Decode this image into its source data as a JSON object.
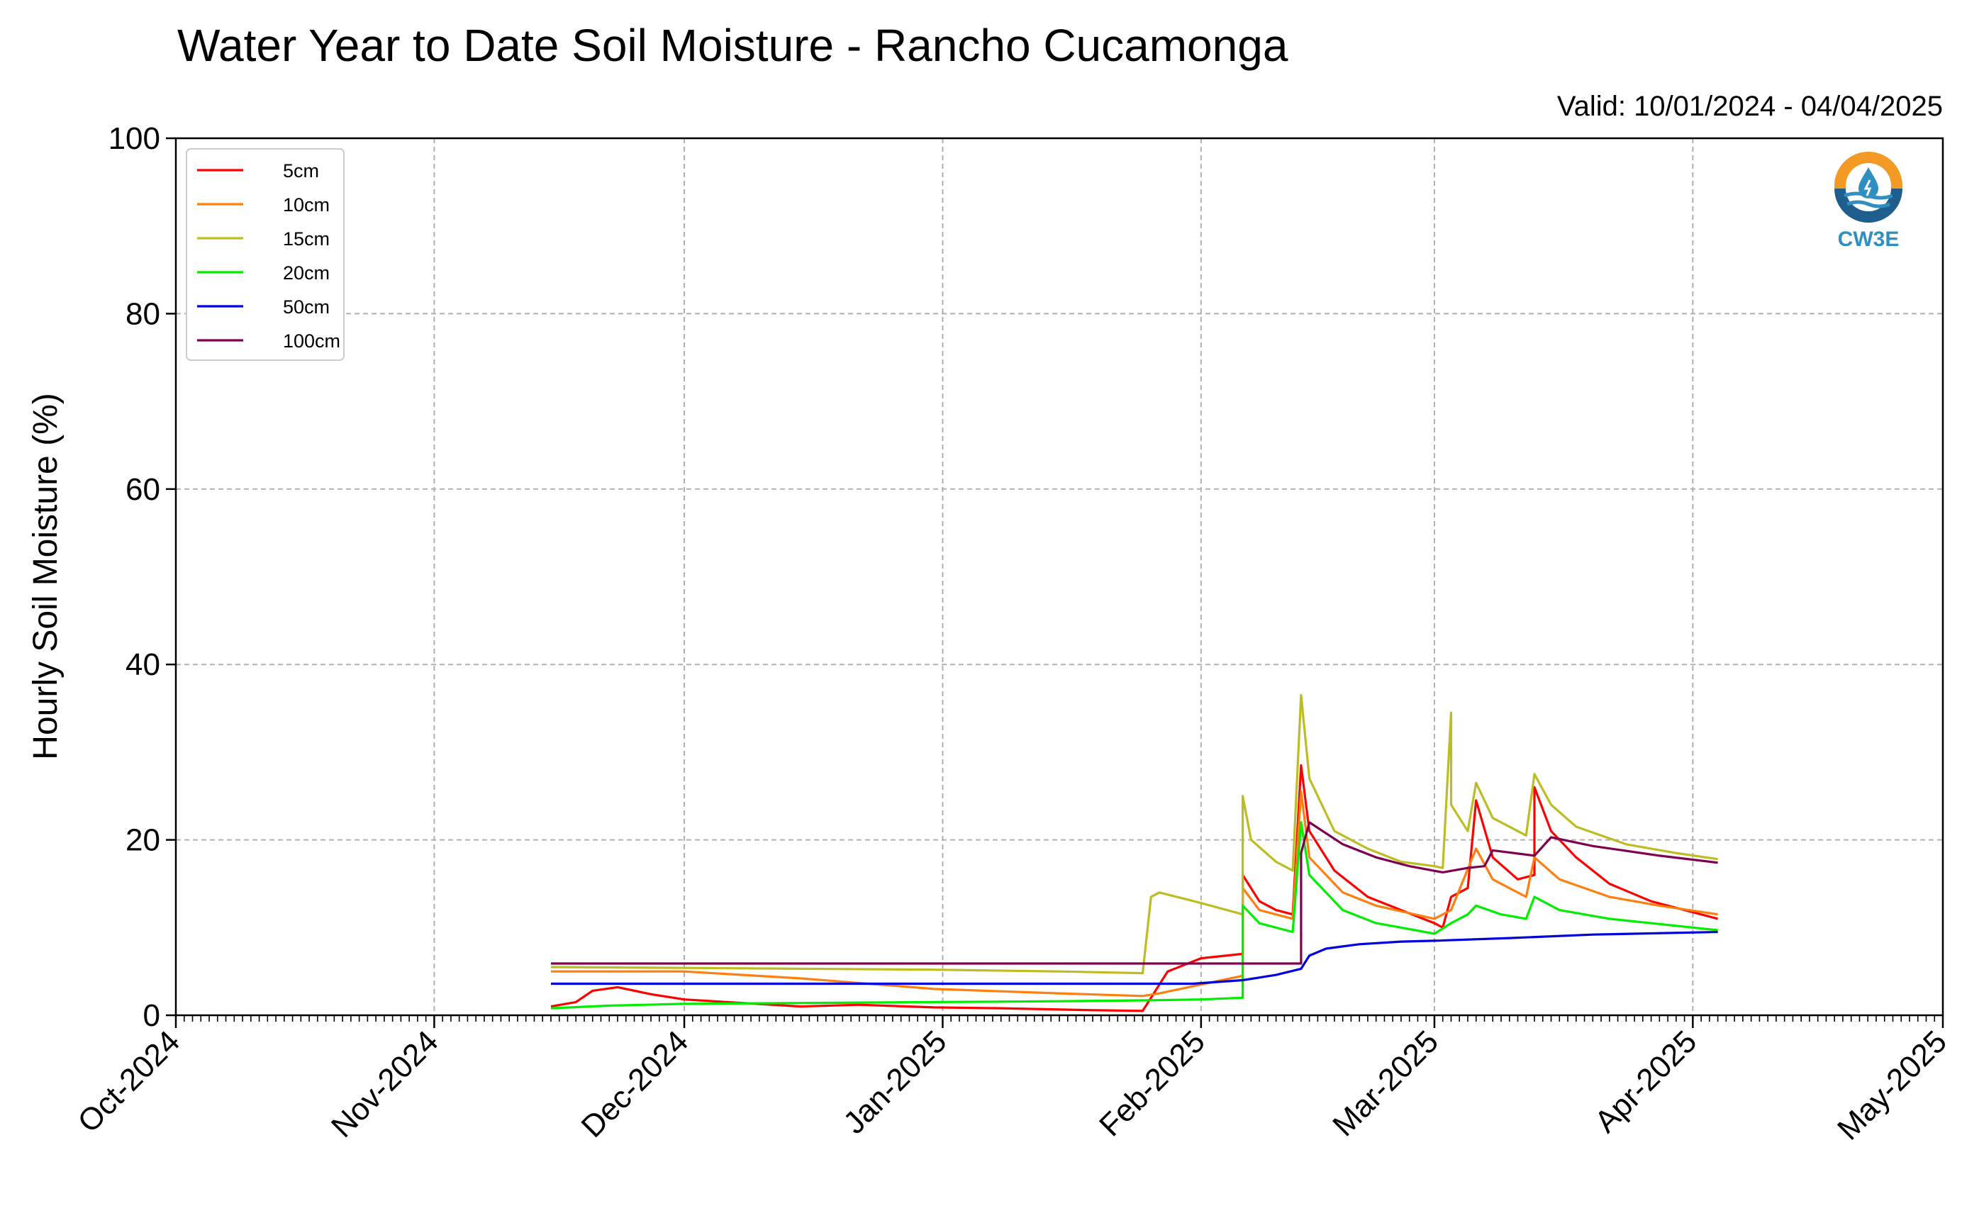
{
  "chart_data": {
    "type": "line",
    "title": "Water Year to Date Soil Moisture - Rancho Cucamonga",
    "subtitle": "Valid: 10/01/2024 - 04/04/2025",
    "ylabel": "Hourly Soil Moisture (%)",
    "xlabel": "",
    "ylim": [
      0,
      100
    ],
    "xlim": [
      "2024-10-01",
      "2025-05-01"
    ],
    "yticks": [
      0,
      20,
      40,
      60,
      80,
      100
    ],
    "xtick_labels": [
      "Oct-2024",
      "Nov-2024",
      "Dec-2024",
      "Jan-2025",
      "Feb-2025",
      "Mar-2025",
      "Apr-2025",
      "May-2025"
    ],
    "grid": true,
    "legend_position": "top-left",
    "logo_text": "CW3E",
    "series": [
      {
        "name": "5cm",
        "color": "#ff0000",
        "points": [
          [
            "2024-11-15",
            1.0
          ],
          [
            "2024-11-18",
            1.5
          ],
          [
            "2024-11-20",
            2.8
          ],
          [
            "2024-11-23",
            3.2
          ],
          [
            "2024-11-27",
            2.4
          ],
          [
            "2024-12-01",
            1.8
          ],
          [
            "2024-12-08",
            1.4
          ],
          [
            "2024-12-15",
            1.0
          ],
          [
            "2024-12-22",
            1.2
          ],
          [
            "2024-12-31",
            0.9
          ],
          [
            "2025-01-08",
            0.8
          ],
          [
            "2025-01-18",
            0.6
          ],
          [
            "2025-01-25",
            0.5
          ],
          [
            "2025-01-26",
            2.0
          ],
          [
            "2025-01-28",
            5.0
          ],
          [
            "2025-02-01",
            6.5
          ],
          [
            "2025-02-06",
            7.0
          ],
          [
            "2025-02-06",
            16.0
          ],
          [
            "2025-02-08",
            13.0
          ],
          [
            "2025-02-10",
            12.0
          ],
          [
            "2025-02-12",
            11.5
          ],
          [
            "2025-02-13",
            28.5
          ],
          [
            "2025-02-14",
            21.0
          ],
          [
            "2025-02-17",
            16.5
          ],
          [
            "2025-02-21",
            13.5
          ],
          [
            "2025-02-25",
            12.0
          ],
          [
            "2025-03-01",
            10.5
          ],
          [
            "2025-03-02",
            10.0
          ],
          [
            "2025-03-03",
            13.5
          ],
          [
            "2025-03-05",
            14.5
          ],
          [
            "2025-03-06",
            24.5
          ],
          [
            "2025-03-08",
            18.0
          ],
          [
            "2025-03-11",
            15.5
          ],
          [
            "2025-03-13",
            16.0
          ],
          [
            "2025-03-13",
            26.0
          ],
          [
            "2025-03-15",
            21.0
          ],
          [
            "2025-03-18",
            18.0
          ],
          [
            "2025-03-22",
            15.0
          ],
          [
            "2025-03-27",
            13.0
          ],
          [
            "2025-03-31",
            12.0
          ],
          [
            "2025-04-04",
            11.0
          ]
        ]
      },
      {
        "name": "10cm",
        "color": "#ff7f0e",
        "points": [
          [
            "2024-11-15",
            5.0
          ],
          [
            "2024-12-01",
            5.0
          ],
          [
            "2024-12-15",
            4.2
          ],
          [
            "2024-12-31",
            3.0
          ],
          [
            "2025-01-15",
            2.5
          ],
          [
            "2025-01-25",
            2.2
          ],
          [
            "2025-01-27",
            2.5
          ],
          [
            "2025-02-01",
            3.5
          ],
          [
            "2025-02-06",
            4.5
          ],
          [
            "2025-02-06",
            14.5
          ],
          [
            "2025-02-08",
            12.0
          ],
          [
            "2025-02-12",
            11.0
          ],
          [
            "2025-02-13",
            25.5
          ],
          [
            "2025-02-14",
            18.0
          ],
          [
            "2025-02-18",
            14.0
          ],
          [
            "2025-02-22",
            12.5
          ],
          [
            "2025-03-01",
            11.0
          ],
          [
            "2025-03-03",
            12.0
          ],
          [
            "2025-03-06",
            19.0
          ],
          [
            "2025-03-08",
            15.5
          ],
          [
            "2025-03-12",
            13.5
          ],
          [
            "2025-03-13",
            18.0
          ],
          [
            "2025-03-16",
            15.5
          ],
          [
            "2025-03-22",
            13.5
          ],
          [
            "2025-03-28",
            12.5
          ],
          [
            "2025-04-04",
            11.5
          ]
        ]
      },
      {
        "name": "15cm",
        "color": "#bcbd22",
        "points": [
          [
            "2024-11-15",
            5.5
          ],
          [
            "2024-12-01",
            5.4
          ],
          [
            "2024-12-31",
            5.2
          ],
          [
            "2025-01-15",
            5.0
          ],
          [
            "2025-01-25",
            4.8
          ],
          [
            "2025-01-26",
            13.5
          ],
          [
            "2025-01-27",
            14.0
          ],
          [
            "2025-02-01",
            12.8
          ],
          [
            "2025-02-06",
            11.5
          ],
          [
            "2025-02-06",
            25.0
          ],
          [
            "2025-02-07",
            20.0
          ],
          [
            "2025-02-10",
            17.5
          ],
          [
            "2025-02-12",
            16.5
          ],
          [
            "2025-02-13",
            36.5
          ],
          [
            "2025-02-14",
            27.0
          ],
          [
            "2025-02-17",
            21.0
          ],
          [
            "2025-02-21",
            19.0
          ],
          [
            "2025-02-25",
            17.5
          ],
          [
            "2025-03-01",
            17.0
          ],
          [
            "2025-03-02",
            16.8
          ],
          [
            "2025-03-03",
            34.5
          ],
          [
            "2025-03-03",
            24.0
          ],
          [
            "2025-03-05",
            21.0
          ],
          [
            "2025-03-06",
            26.5
          ],
          [
            "2025-03-08",
            22.5
          ],
          [
            "2025-03-12",
            20.5
          ],
          [
            "2025-03-13",
            27.5
          ],
          [
            "2025-03-15",
            24.0
          ],
          [
            "2025-03-18",
            21.5
          ],
          [
            "2025-03-24",
            19.5
          ],
          [
            "2025-03-30",
            18.5
          ],
          [
            "2025-04-04",
            17.8
          ]
        ]
      },
      {
        "name": "20cm",
        "color": "#00ee00",
        "points": [
          [
            "2024-11-15",
            0.8
          ],
          [
            "2024-11-22",
            1.1
          ],
          [
            "2024-12-01",
            1.3
          ],
          [
            "2024-12-15",
            1.4
          ],
          [
            "2024-12-31",
            1.5
          ],
          [
            "2025-01-15",
            1.6
          ],
          [
            "2025-01-25",
            1.7
          ],
          [
            "2025-02-01",
            1.8
          ],
          [
            "2025-02-06",
            2.0
          ],
          [
            "2025-02-06",
            12.5
          ],
          [
            "2025-02-08",
            10.5
          ],
          [
            "2025-02-12",
            9.5
          ],
          [
            "2025-02-13",
            22.0
          ],
          [
            "2025-02-14",
            16.0
          ],
          [
            "2025-02-18",
            12.0
          ],
          [
            "2025-02-22",
            10.5
          ],
          [
            "2025-02-25",
            10.0
          ],
          [
            "2025-03-01",
            9.3
          ],
          [
            "2025-03-03",
            10.5
          ],
          [
            "2025-03-05",
            11.5
          ],
          [
            "2025-03-06",
            12.5
          ],
          [
            "2025-03-09",
            11.5
          ],
          [
            "2025-03-12",
            11.0
          ],
          [
            "2025-03-13",
            13.5
          ],
          [
            "2025-03-16",
            12.0
          ],
          [
            "2025-03-22",
            11.0
          ],
          [
            "2025-03-30",
            10.2
          ],
          [
            "2025-04-04",
            9.7
          ]
        ]
      },
      {
        "name": "50cm",
        "color": "#0000dd",
        "points": [
          [
            "2024-11-15",
            3.6
          ],
          [
            "2024-12-31",
            3.6
          ],
          [
            "2025-01-31",
            3.6
          ],
          [
            "2025-02-06",
            4.0
          ],
          [
            "2025-02-10",
            4.6
          ],
          [
            "2025-02-13",
            5.3
          ],
          [
            "2025-02-14",
            6.8
          ],
          [
            "2025-02-16",
            7.6
          ],
          [
            "2025-02-20",
            8.1
          ],
          [
            "2025-02-25",
            8.4
          ],
          [
            "2025-03-01",
            8.5
          ],
          [
            "2025-03-10",
            8.8
          ],
          [
            "2025-03-20",
            9.2
          ],
          [
            "2025-04-04",
            9.5
          ]
        ]
      },
      {
        "name": "100cm",
        "color": "#800050",
        "points": [
          [
            "2024-11-15",
            5.9
          ],
          [
            "2025-02-13",
            5.9
          ],
          [
            "2025-02-13",
            18.5
          ],
          [
            "2025-02-14",
            22.0
          ],
          [
            "2025-02-18",
            19.5
          ],
          [
            "2025-02-22",
            18.0
          ],
          [
            "2025-02-26",
            17.0
          ],
          [
            "2025-03-02",
            16.3
          ],
          [
            "2025-03-05",
            16.8
          ],
          [
            "2025-03-07",
            17.0
          ],
          [
            "2025-03-08",
            18.8
          ],
          [
            "2025-03-13",
            18.2
          ],
          [
            "2025-03-15",
            20.3
          ],
          [
            "2025-03-20",
            19.3
          ],
          [
            "2025-03-28",
            18.2
          ],
          [
            "2025-04-04",
            17.4
          ]
        ]
      }
    ]
  }
}
